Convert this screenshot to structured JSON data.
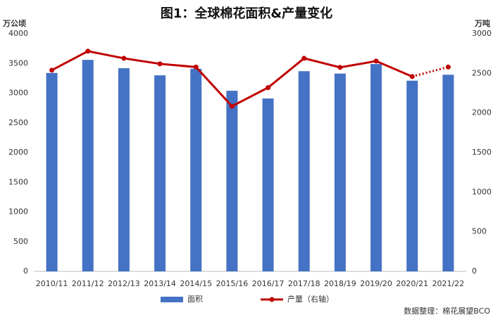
{
  "chart_data": {
    "type": "bar_line",
    "title": "图1：全球棉花面积&产量变化",
    "y_label": "万公顷",
    "y2_label": "万吨",
    "categories": [
      "2010/11",
      "2011/12",
      "2012/13",
      "2013/14",
      "2014/15",
      "2015/16",
      "2016/17",
      "2017/18",
      "2018/19",
      "2019/20",
      "2020/21",
      "2021/22"
    ],
    "series": [
      {
        "name": "面积",
        "color": "#4472c4",
        "kind": "bar",
        "values": [
          3340,
          3560,
          3420,
          3300,
          3410,
          3040,
          2910,
          3370,
          3330,
          3490,
          3210,
          3310
        ]
      },
      {
        "name": "产量（右轴）",
        "color": "#c00000",
        "kind": "line",
        "axis": "y2",
        "dashed_from": 10,
        "values": [
          2540,
          2780,
          2690,
          2620,
          2580,
          2085,
          2320,
          2690,
          2575,
          2655,
          2460,
          2580
        ]
      }
    ],
    "ylim": [
      0,
      4000
    ],
    "yticks": [
      0,
      500,
      1000,
      1500,
      2000,
      2500,
      3000,
      3500,
      4000
    ],
    "y2lim": [
      0,
      3000
    ],
    "y2ticks": [
      0,
      500,
      1000,
      1500,
      2000,
      2500,
      3000
    ],
    "source": "数据整理：棉花展望BCO"
  }
}
